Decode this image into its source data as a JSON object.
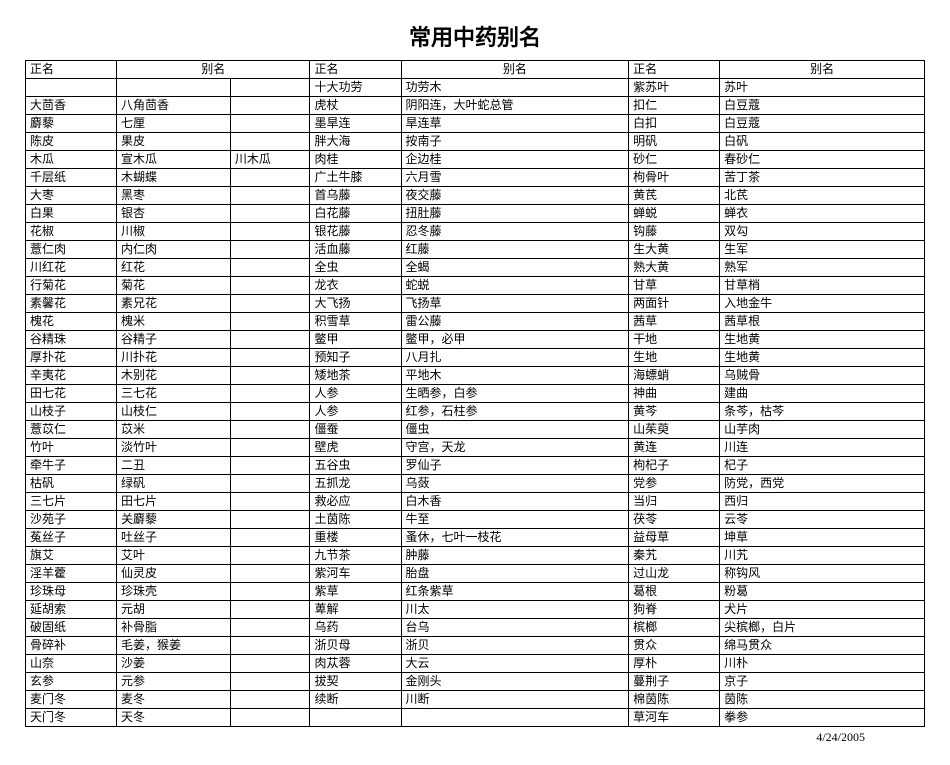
{
  "title": "常用中药别名",
  "footer_date": "4/24/2005",
  "headers": {
    "a1": "正名",
    "a2": "别名",
    "a3": "",
    "b1": "正名",
    "b2": "别名",
    "c1": "正名",
    "c2": "别名"
  },
  "rows": [
    {
      "a1": "",
      "a2": "",
      "a3": "",
      "b1": "十大功劳",
      "b2": "功劳木",
      "c1": "紫苏叶",
      "c2": "苏叶"
    },
    {
      "a1": "大茴香",
      "a2": "八角茴香",
      "a3": "",
      "b1": "虎杖",
      "b2": "阴阳连，大叶蛇总管",
      "c1": "扣仁",
      "c2": "白豆蔻"
    },
    {
      "a1": "麝藜",
      "a2": "七厘",
      "a3": "",
      "b1": "墨旱连",
      "b2": "旱连草",
      "c1": "白扣",
      "c2": "白豆蔻"
    },
    {
      "a1": "陈皮",
      "a2": "果皮",
      "a3": "",
      "b1": "胖大海",
      "b2": "按南子",
      "c1": "明矾",
      "c2": "白矾"
    },
    {
      "a1": "木瓜",
      "a2": "宣木瓜",
      "a3": "川木瓜",
      "b1": "肉桂",
      "b2": "企边桂",
      "c1": "砂仁",
      "c2": "春砂仁"
    },
    {
      "a1": "千层纸",
      "a2": "木蝴蝶",
      "a3": "",
      "b1": "广土牛膝",
      "b2": "六月雪",
      "c1": "枸骨叶",
      "c2": "苦丁茶"
    },
    {
      "a1": "大枣",
      "a2": "黑枣",
      "a3": "",
      "b1": "首乌藤",
      "b2": "夜交藤",
      "c1": "黄芪",
      "c2": "北芪"
    },
    {
      "a1": "白果",
      "a2": "银杏",
      "a3": "",
      "b1": "白花藤",
      "b2": "扭肚藤",
      "c1": "蝉蜕",
      "c2": "蝉衣"
    },
    {
      "a1": "花椒",
      "a2": "川椒",
      "a3": "",
      "b1": "银花藤",
      "b2": "忍冬藤",
      "c1": "钩藤",
      "c2": "双勾"
    },
    {
      "a1": "薏仁肉",
      "a2": "内仁肉",
      "a3": "",
      "b1": "活血藤",
      "b2": "红藤",
      "c1": "生大黄",
      "c2": "生军"
    },
    {
      "a1": "川红花",
      "a2": "红花",
      "a3": "",
      "b1": "全虫",
      "b2": "全蝎",
      "c1": "熟大黄",
      "c2": "熟军"
    },
    {
      "a1": "行菊花",
      "a2": "菊花",
      "a3": "",
      "b1": "龙衣",
      "b2": "蛇蜕",
      "c1": "甘草",
      "c2": "甘草梢"
    },
    {
      "a1": "素馨花",
      "a2": "素兄花",
      "a3": "",
      "b1": "大飞扬",
      "b2": "飞扬草",
      "c1": "两面针",
      "c2": "入地金牛"
    },
    {
      "a1": "槐花",
      "a2": "槐米",
      "a3": "",
      "b1": "积雪草",
      "b2": "雷公藤",
      "c1": "茜草",
      "c2": "茜草根"
    },
    {
      "a1": "谷精珠",
      "a2": "谷精子",
      "a3": "",
      "b1": "鳖甲",
      "b2": "鳖甲，必甲",
      "c1": "干地",
      "c2": "生地黄"
    },
    {
      "a1": "厚扑花",
      "a2": "川扑花",
      "a3": "",
      "b1": "预知子",
      "b2": "八月扎",
      "c1": "生地",
      "c2": "生地黄"
    },
    {
      "a1": "辛夷花",
      "a2": "木别花",
      "a3": "",
      "b1": "矮地茶",
      "b2": "平地木",
      "c1": "海螵蛸",
      "c2": "乌贼骨"
    },
    {
      "a1": "田七花",
      "a2": "三七花",
      "a3": "",
      "b1": "人参",
      "b2": "生晒参，白参",
      "c1": "神曲",
      "c2": "建曲"
    },
    {
      "a1": "山枝子",
      "a2": "山枝仁",
      "a3": "",
      "b1": "人参",
      "b2": "红参，石柱参",
      "c1": "黄芩",
      "c2": "条芩，枯芩"
    },
    {
      "a1": "薏苡仁",
      "a2": "苡米",
      "a3": "",
      "b1": "僵蚕",
      "b2": "僵虫",
      "c1": "山茱萸",
      "c2": "山芋肉"
    },
    {
      "a1": "竹叶",
      "a2": "淡竹叶",
      "a3": "",
      "b1": "壁虎",
      "b2": "守宫，天龙",
      "c1": "黄连",
      "c2": "川连"
    },
    {
      "a1": "牵牛子",
      "a2": "二丑",
      "a3": "",
      "b1": "五谷虫",
      "b2": "罗仙子",
      "c1": "枸杞子",
      "c2": "杞子"
    },
    {
      "a1": "枯矾",
      "a2": "绿矾",
      "a3": "",
      "b1": "五抓龙",
      "b2": "乌蔹",
      "c1": "党参",
      "c2": "防党，西党"
    },
    {
      "a1": "三七片",
      "a2": "田七片",
      "a3": "",
      "b1": "救必应",
      "b2": "白木香",
      "c1": "当归",
      "c2": "西归"
    },
    {
      "a1": "沙苑子",
      "a2": "关麝藜",
      "a3": "",
      "b1": "土茵陈",
      "b2": "牛至",
      "c1": "茯苓",
      "c2": "云苓"
    },
    {
      "a1": "菟丝子",
      "a2": "吐丝子",
      "a3": "",
      "b1": "重楼",
      "b2": "蚤休，七叶一枝花",
      "c1": "益母草",
      "c2": "坤草"
    },
    {
      "a1": "旗艾",
      "a2": "艾叶",
      "a3": "",
      "b1": "九节茶",
      "b2": "肿藤",
      "c1": "秦艽",
      "c2": "川艽"
    },
    {
      "a1": "淫羊藿",
      "a2": "仙灵皮",
      "a3": "",
      "b1": "紫河车",
      "b2": "胎盘",
      "c1": "过山龙",
      "c2": "称钩风"
    },
    {
      "a1": "珍珠母",
      "a2": "珍珠壳",
      "a3": "",
      "b1": "紫草",
      "b2": "红条紫草",
      "c1": "葛根",
      "c2": "粉葛"
    },
    {
      "a1": "延胡索",
      "a2": "元胡",
      "a3": "",
      "b1": "萆解",
      "b2": "川太",
      "c1": "狗脊",
      "c2": "犬片"
    },
    {
      "a1": "破固纸",
      "a2": "补骨脂",
      "a3": "",
      "b1": "乌药",
      "b2": "台乌",
      "c1": "槟榔",
      "c2": "尖槟榔，白片"
    },
    {
      "a1": "骨碎补",
      "a2": "毛姜，猴姜",
      "a3": "",
      "b1": "浙贝母",
      "b2": "浙贝",
      "c1": "贯众",
      "c2": "绵马贯众"
    },
    {
      "a1": "山奈",
      "a2": "沙姜",
      "a3": "",
      "b1": "肉苁蓉",
      "b2": "大云",
      "c1": "厚朴",
      "c2": "川朴"
    },
    {
      "a1": "玄参",
      "a2": "元参",
      "a3": "",
      "b1": "拔契",
      "b2": "金刚头",
      "c1": "蔓荆子",
      "c2": "京子"
    },
    {
      "a1": "麦门冬",
      "a2": "麦冬",
      "a3": "",
      "b1": "续断",
      "b2": "川断",
      "c1": "棉茵陈",
      "c2": "茵陈"
    },
    {
      "a1": "天门冬",
      "a2": "天冬",
      "a3": "",
      "b1": "",
      "b2": "",
      "c1": "草河车",
      "c2": "拳参"
    }
  ]
}
